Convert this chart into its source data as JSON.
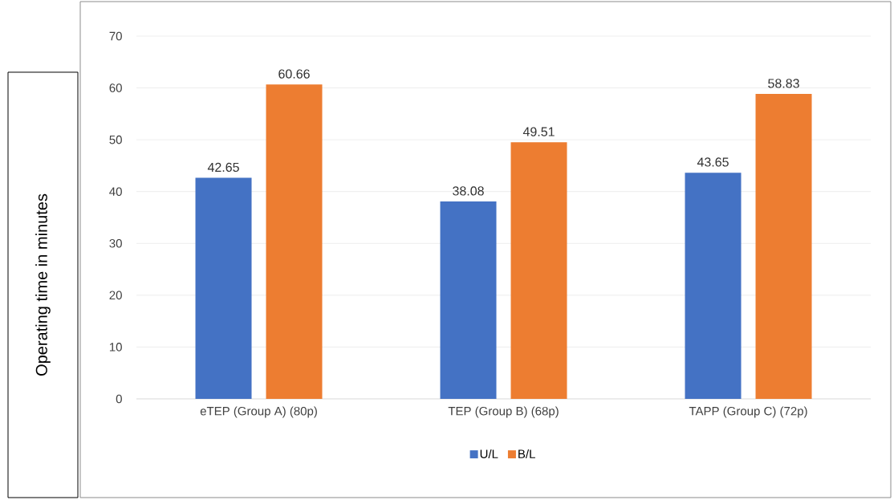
{
  "chart_data": {
    "type": "bar",
    "ylabel": "Operating time in minutes",
    "categories": [
      "eTEP (Group A) (80p)",
      "TEP (Group B) (68p)",
      "TAPP (Group C) (72p)"
    ],
    "series": [
      {
        "name": "U/L",
        "color": "#4472c4",
        "values": [
          42.65,
          38.08,
          43.65
        ]
      },
      {
        "name": "B/L",
        "color": "#ed7d31",
        "values": [
          60.66,
          49.51,
          58.83
        ]
      }
    ],
    "ylim": [
      0,
      70
    ],
    "yticks": [
      0,
      10,
      20,
      30,
      40,
      50,
      60,
      70
    ],
    "grid": "y",
    "legend": "bottom",
    "data_labels": true
  }
}
